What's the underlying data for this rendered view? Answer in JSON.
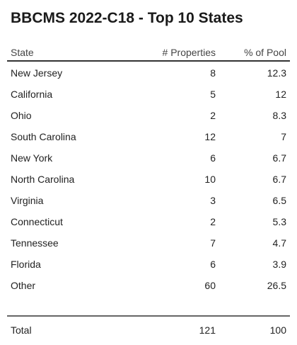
{
  "chart_data": {
    "type": "table",
    "title": "BBCMS 2022-C18 - Top 10 States",
    "columns": [
      "State",
      "# Properties",
      "% of Pool"
    ],
    "rows": [
      {
        "state": "New Jersey",
        "properties": "8",
        "pool": "12.3"
      },
      {
        "state": "California",
        "properties": "5",
        "pool": "12"
      },
      {
        "state": "Ohio",
        "properties": "2",
        "pool": "8.3"
      },
      {
        "state": "South Carolina",
        "properties": "12",
        "pool": "7"
      },
      {
        "state": "New York",
        "properties": "6",
        "pool": "6.7"
      },
      {
        "state": "North Carolina",
        "properties": "10",
        "pool": "6.7"
      },
      {
        "state": "Virginia",
        "properties": "3",
        "pool": "6.5"
      },
      {
        "state": "Connecticut",
        "properties": "2",
        "pool": "5.3"
      },
      {
        "state": "Tennessee",
        "properties": "7",
        "pool": "4.7"
      },
      {
        "state": "Florida",
        "properties": "6",
        "pool": "3.9"
      },
      {
        "state": "Other",
        "properties": "60",
        "pool": "26.5"
      }
    ],
    "total": {
      "label": "Total",
      "properties": "121",
      "pool": "100"
    }
  }
}
